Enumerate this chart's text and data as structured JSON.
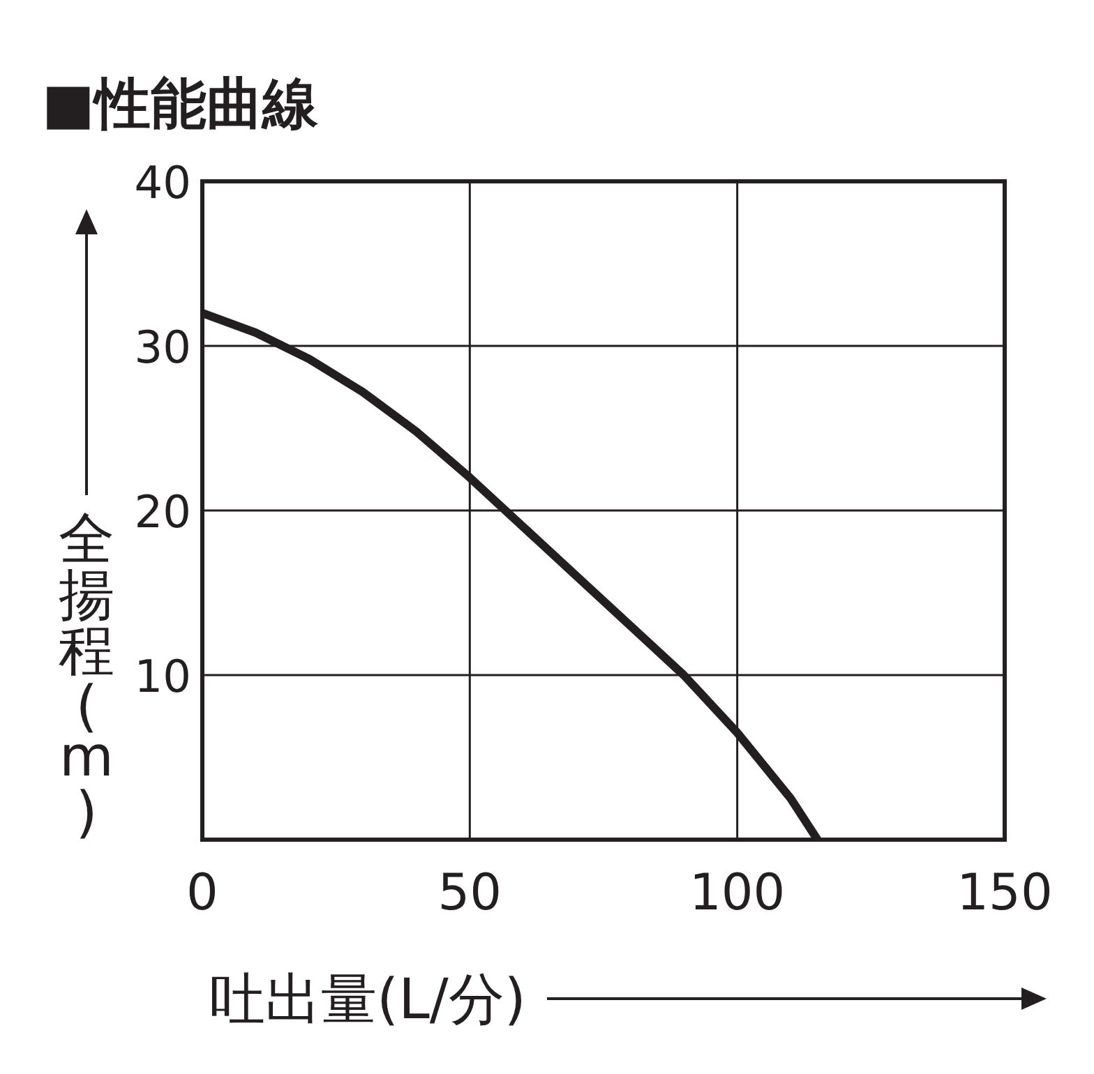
{
  "chart_data": {
    "type": "line",
    "title": "■性能曲線",
    "xlabel": "吐出量(L/分)",
    "ylabel": "全揚程(m)",
    "x": [
      0,
      10,
      20,
      30,
      40,
      50,
      60,
      70,
      80,
      90,
      100,
      110,
      115
    ],
    "series": [
      {
        "color": "#231f20",
        "values": [
          32,
          30.8,
          29.2,
          27.2,
          24.8,
          22,
          19,
          16,
          13,
          10,
          6.5,
          2.5,
          0
        ]
      }
    ],
    "xlim": [
      0,
      150
    ],
    "ylim": [
      0,
      40
    ],
    "xticks": [
      0,
      50,
      100,
      150
    ],
    "yticks": [
      10,
      20,
      30,
      40
    ],
    "grid": true
  }
}
